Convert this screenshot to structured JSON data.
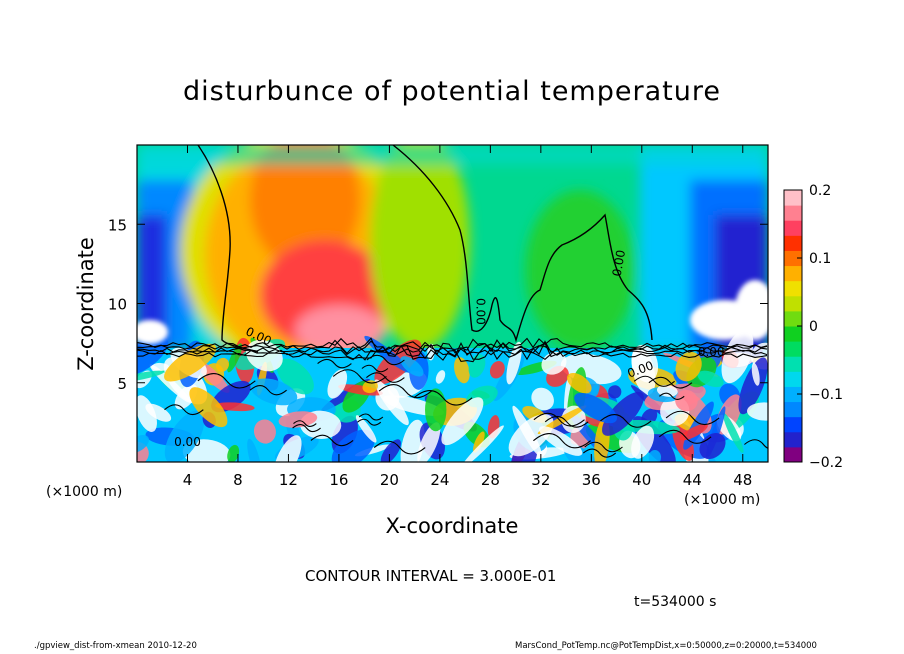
{
  "page": {
    "title": "disturbunce of potential temperature",
    "xlabel": "X-coordinate",
    "ylabel": "Z-coordinate",
    "x_unit_left": "(×1000 m)",
    "x_unit_right": "(×1000 m)",
    "contour_interval": "CONTOUR INTERVAL = 3.000E-01",
    "timestamp": "t=534000 s",
    "footer_left": "./gpview_dist-from-xmean  2010-12-20",
    "footer_right": "MarsCond_PotTemp.nc@PotTempDist,x=0:50000,z=0:20000,t=534000"
  },
  "chart_data": {
    "type": "heatmap",
    "title": "disturbunce of potential temperature",
    "xlabel": "X-coordinate",
    "ylabel": "Z-coordinate",
    "x_unit": "(×1000 m)",
    "xlim": [
      0,
      50
    ],
    "ylim": [
      0,
      20
    ],
    "x_ticks": [
      4,
      8,
      12,
      16,
      20,
      24,
      28,
      32,
      36,
      40,
      44,
      48
    ],
    "y_ticks": [
      5,
      10,
      15
    ],
    "colorbar": {
      "range": [
        -0.2,
        0.2
      ],
      "ticks": [
        {
          "value": 0.2,
          "label": "0.2"
        },
        {
          "value": 0.1,
          "label": "0.1"
        },
        {
          "value": 0,
          "label": "0"
        },
        {
          "value": -0.1,
          "label": "−0.1"
        },
        {
          "value": -0.2,
          "label": "−0.2"
        }
      ],
      "colors": [
        "#800080",
        "#2222cc",
        "#0044ff",
        "#0088ff",
        "#00b0ff",
        "#00d8ee",
        "#00e0b0",
        "#00dc60",
        "#10d020",
        "#70dc10",
        "#c0e000",
        "#f0e000",
        "#ffb000",
        "#ff7000",
        "#ff3000",
        "#ff4060",
        "#ff8090",
        "#ffc0c8"
      ]
    },
    "contour_interval": 0.3,
    "contour_labels": [
      {
        "text": "0.00",
        "x": 9.5,
        "z": 7.7,
        "rotate": 25
      },
      {
        "text": "0.00",
        "x": 26.9,
        "z": 9.5,
        "rotate": 90
      },
      {
        "text": "0.00",
        "x": 38.5,
        "z": 12.5,
        "rotate": -80
      },
      {
        "text": "0.00",
        "x": 45.5,
        "z": 6.7,
        "rotate": 0
      },
      {
        "text": "0.00",
        "x": 40.0,
        "z": 5.6,
        "rotate": -20
      },
      {
        "text": "0.00",
        "x": 4.0,
        "z": 1.0,
        "rotate": 0
      }
    ]
  }
}
